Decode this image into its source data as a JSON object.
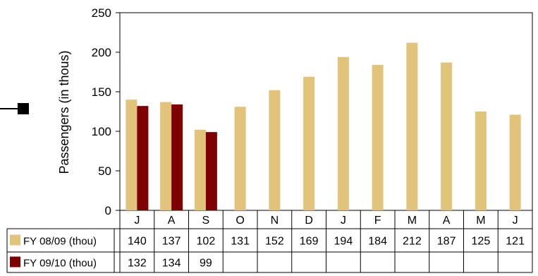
{
  "chart_data": {
    "type": "bar",
    "title": "",
    "xlabel": "",
    "ylabel": "Passengers (in thous)",
    "ylim": [
      0,
      250
    ],
    "yticks": [
      0,
      50,
      100,
      150,
      200,
      250
    ],
    "grid": false,
    "categories": [
      "J",
      "A",
      "S",
      "O",
      "N",
      "D",
      "J",
      "F",
      "M",
      "A",
      "M",
      "J"
    ],
    "series": [
      {
        "name": "FY 08/09 (thou)",
        "color": "#E2C37A",
        "values": [
          140,
          137,
          102,
          131,
          152,
          169,
          194,
          184,
          212,
          187,
          125,
          121
        ]
      },
      {
        "name": "FY 09/10 (thou)",
        "color": "#7F0000",
        "values": [
          132,
          134,
          99,
          null,
          null,
          null,
          null,
          null,
          null,
          null,
          null,
          null
        ]
      }
    ],
    "legend": "data-table-left"
  },
  "decor": {
    "marker_color": "#000000"
  }
}
